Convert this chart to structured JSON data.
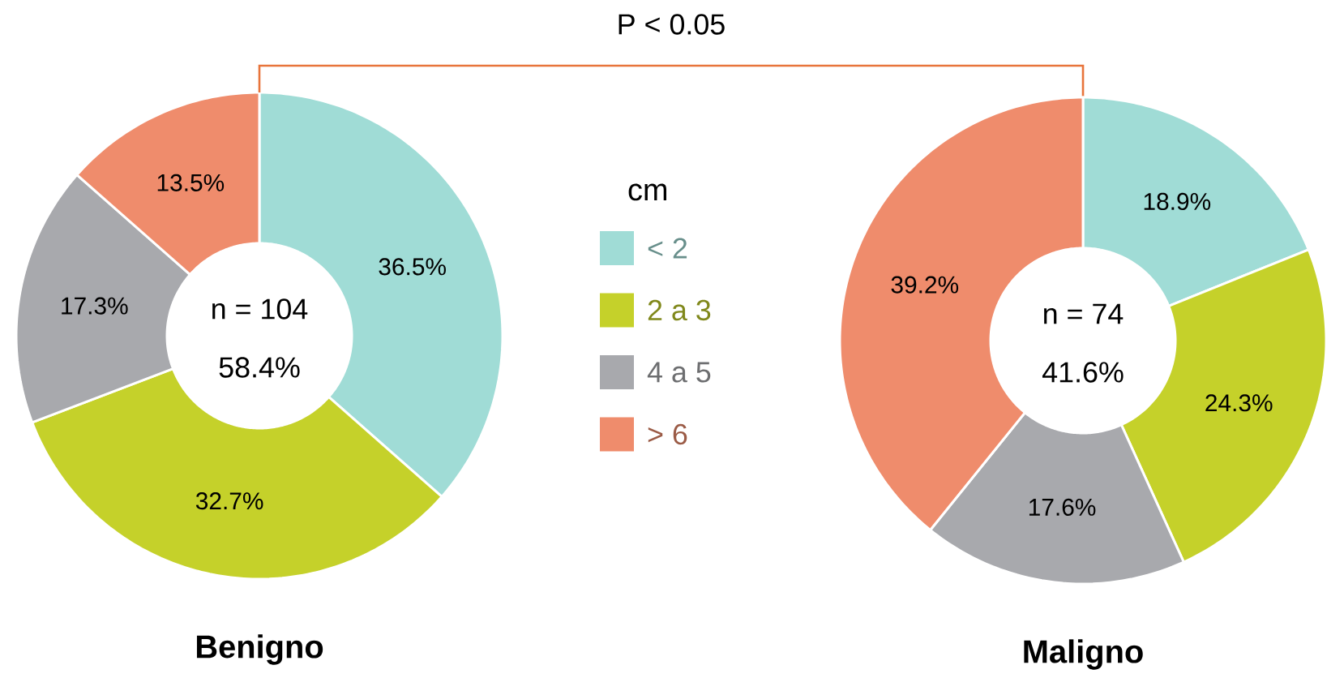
{
  "chart_data": [
    {
      "type": "donut",
      "title": "Benigno",
      "categories": [
        "< 2",
        "2 a 3",
        "4 a 5",
        "> 6"
      ],
      "values": [
        36.5,
        32.7,
        17.3,
        13.5
      ],
      "colors": [
        "#a0dcd6",
        "#c5d12a",
        "#a8a9ad",
        "#ef8c6c"
      ],
      "value_labels": [
        "36.5%",
        "32.7%",
        "17.3%",
        "13.5%"
      ],
      "legend": "right",
      "legend_title": "cm",
      "annotations": [
        "n = 104",
        "58.4%",
        "P < 0.05"
      ]
    },
    {
      "type": "donut",
      "title": "Maligno",
      "categories": [
        null,
        null,
        null,
        null
      ],
      "values": [
        18.9,
        24.3,
        17.6,
        39.2
      ],
      "colors": [
        "#a0dcd6",
        "#c5d12a",
        "#a8a9ad",
        "#ef8c6c"
      ],
      "value_labels": [
        "18.9%",
        "24.3%",
        "17.6%",
        "39.2%"
      ],
      "annotations": [
        "n = 74",
        "41.6%"
      ]
    }
  ]
}
